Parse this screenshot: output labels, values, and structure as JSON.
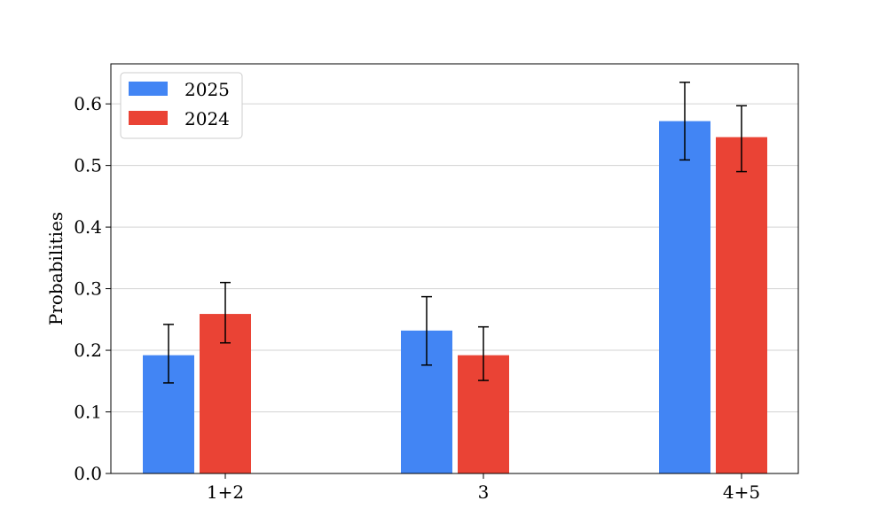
{
  "chart_data": {
    "type": "bar",
    "title": "",
    "xlabel": "",
    "ylabel": "Probabilities",
    "categories": [
      "1+2",
      "3",
      "4+5"
    ],
    "ylim": [
      0,
      0.665
    ],
    "yticks": [
      "0.0",
      "0.1",
      "0.2",
      "0.3",
      "0.4",
      "0.5",
      "0.6"
    ],
    "grid": "horizontal",
    "legend_position": "top-left",
    "series": [
      {
        "name": "2025",
        "color": "#4285f4",
        "values": [
          0.192,
          0.232,
          0.572
        ],
        "err_low": [
          0.147,
          0.176,
          0.509
        ],
        "err_high": [
          0.242,
          0.287,
          0.635
        ]
      },
      {
        "name": "2024",
        "color": "#ea4335",
        "values": [
          0.259,
          0.192,
          0.546
        ],
        "err_low": [
          0.212,
          0.151,
          0.49
        ],
        "err_high": [
          0.31,
          0.238,
          0.597
        ]
      }
    ]
  }
}
